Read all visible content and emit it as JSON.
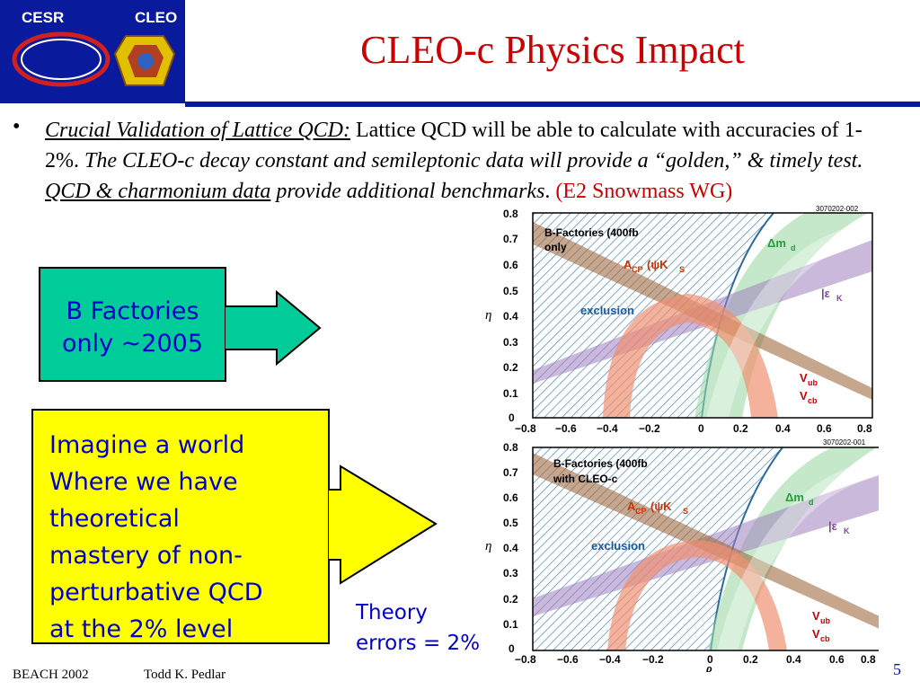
{
  "logo": {
    "left": "CESR",
    "right": "CLEO"
  },
  "title": "CLEO-c Physics Impact",
  "bullet": {
    "marker": "•",
    "lead_underlined": "Crucial Validation of Lattice QCD:",
    "text1": " Lattice QCD will be able to  calculate with accuracies of 1-2%.",
    "text2_italic": " The CLEO-c decay constant and semileptonic  data will provide a “golden,” & timely test.",
    "text3_underlined": "QCD & charmonium data",
    "text4_italic": " provide additional benchmarks",
    "text5": ".",
    "ref": " (E2 Snowmass WG)"
  },
  "box1": {
    "line1": "B Factories",
    "line2": "only ~2005"
  },
  "box2": {
    "text": "Imagine a world\nWhere we have\ntheoretical\nmastery of non-\nperturbative QCD\nat the 2% level"
  },
  "theory": "Theory\nerrors = 2%",
  "plots": {
    "ylabel": "η",
    "xlabel": "ρ",
    "x_ticks": [
      "−0.8",
      "−0.6",
      "−0.4",
      "−0.2",
      "0",
      "0.2",
      "0.4",
      "0.6",
      "0.8"
    ],
    "y_ticks": [
      "0.8",
      "0.7",
      "0.6",
      "0.5",
      "0.4",
      "0.3",
      "0.2",
      "0.1",
      "0"
    ],
    "top": {
      "id": "3070202-002",
      "legend1": "B-Factories (400fb",
      "legend2": "only"
    },
    "bottom": {
      "id": "3070202-001",
      "legend1": "B-Factories (400fb",
      "legend2": "with CLEO-c"
    },
    "labels": {
      "dmd": "Δm",
      "dmd_sub": "d",
      "eps": "|ε",
      "eps_sub": "K",
      "acp": "A",
      "acp_sub": "CP",
      "acp_arg": " (ψK",
      "acp_arg_sub": "S",
      "excl": "exclusion",
      "vub": "V",
      "vub_sub": "ub",
      "vcb": "V",
      "vcb_sub": "cb"
    }
  },
  "footer": {
    "conf": "BEACH 2002",
    "author": "Todd K. Pedlar",
    "page": "5"
  },
  "colors": {
    "title": "#cc0000",
    "navy": "#0a1a9c",
    "box1": "#00cc99",
    "box2": "#ffff00",
    "text_blue": "#0000cc"
  }
}
